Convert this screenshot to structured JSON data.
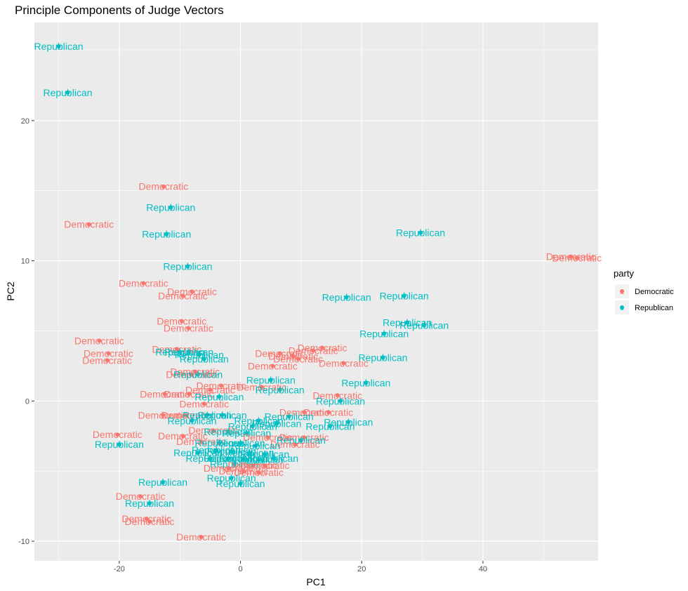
{
  "colors": {
    "Democratic": "#F8766D",
    "Republican": "#00BFC4",
    "panel": "#EBEBEB",
    "grid": "#FFFFFF"
  },
  "chart_data": {
    "type": "scatter",
    "title": "Principle Components of Judge Vectors",
    "xlabel": "PC1",
    "ylabel": "PC2",
    "xlim": [
      -34,
      59
    ],
    "ylim": [
      -11.4,
      27.0
    ],
    "x_ticks": [
      -20,
      0,
      20,
      40
    ],
    "y_ticks": [
      -10,
      0,
      10,
      20
    ],
    "grid": true,
    "legend": {
      "title": "party",
      "position": "right",
      "entries": [
        "Democratic",
        "Republican"
      ]
    },
    "points": [
      {
        "x": -30,
        "y": 25.3,
        "party": "Republican",
        "label": "Republican"
      },
      {
        "x": -28.5,
        "y": 22.0,
        "party": "Republican",
        "label": "Republican"
      },
      {
        "x": -12.7,
        "y": 15.3,
        "party": "Democratic",
        "label": "Democratic"
      },
      {
        "x": -11.5,
        "y": 13.8,
        "party": "Republican",
        "label": "Republican"
      },
      {
        "x": -25.0,
        "y": 12.6,
        "party": "Democratic",
        "label": "Democratic"
      },
      {
        "x": -12.2,
        "y": 11.9,
        "party": "Republican",
        "label": "Republican"
      },
      {
        "x": 29.7,
        "y": 12.0,
        "party": "Republican",
        "label": "Republican"
      },
      {
        "x": -8.7,
        "y": 9.6,
        "party": "Republican",
        "label": "Republican"
      },
      {
        "x": 54.5,
        "y": 10.3,
        "party": "Democratic",
        "label": "Democratic"
      },
      {
        "x": 55.5,
        "y": 10.2,
        "party": "Democratic",
        "label": "Democratic"
      },
      {
        "x": -16.0,
        "y": 8.4,
        "party": "Democratic",
        "label": "Democratic"
      },
      {
        "x": -8.0,
        "y": 7.8,
        "party": "Democratic",
        "label": "Democratic"
      },
      {
        "x": -9.5,
        "y": 7.5,
        "party": "Democratic",
        "label": "Democratic"
      },
      {
        "x": 17.5,
        "y": 7.4,
        "party": "Republican",
        "label": "Republican"
      },
      {
        "x": 27.0,
        "y": 7.5,
        "party": "Republican",
        "label": "Republican"
      },
      {
        "x": -9.7,
        "y": 5.7,
        "party": "Democratic",
        "label": "Democratic"
      },
      {
        "x": -8.6,
        "y": 5.2,
        "party": "Democratic",
        "label": "Democratic"
      },
      {
        "x": 27.5,
        "y": 5.6,
        "party": "Republican",
        "label": "Republican"
      },
      {
        "x": 30.3,
        "y": 5.4,
        "party": "Republican",
        "label": "Republican"
      },
      {
        "x": 23.7,
        "y": 4.8,
        "party": "Republican",
        "label": "Republican"
      },
      {
        "x": -23.3,
        "y": 4.3,
        "party": "Democratic",
        "label": "Democratic"
      },
      {
        "x": -10.5,
        "y": 3.7,
        "party": "Democratic",
        "label": "Democratic"
      },
      {
        "x": -10.0,
        "y": 3.5,
        "party": "Republican",
        "label": "Republican"
      },
      {
        "x": -8.5,
        "y": 3.5,
        "party": "Republican",
        "label": "Republican"
      },
      {
        "x": -6.8,
        "y": 3.3,
        "party": "Republican",
        "label": "Republican"
      },
      {
        "x": -21.8,
        "y": 3.4,
        "party": "Democratic",
        "label": "Democratic"
      },
      {
        "x": -22.0,
        "y": 2.9,
        "party": "Democratic",
        "label": "Democratic"
      },
      {
        "x": -6.0,
        "y": 3.0,
        "party": "Republican",
        "label": "Republican"
      },
      {
        "x": 6.5,
        "y": 3.4,
        "party": "Democratic",
        "label": "Democratic"
      },
      {
        "x": 8.7,
        "y": 3.2,
        "party": "Democratic",
        "label": "Democratic"
      },
      {
        "x": 9.5,
        "y": 3.0,
        "party": "Democratic",
        "label": "Democratic"
      },
      {
        "x": 13.5,
        "y": 3.8,
        "party": "Democratic",
        "label": "Democratic"
      },
      {
        "x": 12.0,
        "y": 3.6,
        "party": "Democratic",
        "label": "Democratic"
      },
      {
        "x": 5.3,
        "y": 2.5,
        "party": "Democratic",
        "label": "Democratic"
      },
      {
        "x": 17.0,
        "y": 2.7,
        "party": "Democratic",
        "label": "Democratic"
      },
      {
        "x": 23.5,
        "y": 3.1,
        "party": "Republican",
        "label": "Republican"
      },
      {
        "x": -7.5,
        "y": 2.1,
        "party": "Democratic",
        "label": "Democratic"
      },
      {
        "x": -8.2,
        "y": 1.9,
        "party": "Democratic",
        "label": "Democratic"
      },
      {
        "x": -7.0,
        "y": 1.9,
        "party": "Republican",
        "label": "Republican"
      },
      {
        "x": 5.0,
        "y": 1.5,
        "party": "Republican",
        "label": "Republican"
      },
      {
        "x": 20.7,
        "y": 1.3,
        "party": "Republican",
        "label": "Republican"
      },
      {
        "x": -3.2,
        "y": 1.1,
        "party": "Democratic",
        "label": "Democratic"
      },
      {
        "x": -5.0,
        "y": 0.8,
        "party": "Democratic",
        "label": "Democratic"
      },
      {
        "x": 3.5,
        "y": 1.0,
        "party": "Democratic",
        "label": "Democratic"
      },
      {
        "x": 6.5,
        "y": 0.8,
        "party": "Republican",
        "label": "Republican"
      },
      {
        "x": -12.5,
        "y": 0.5,
        "party": "Democratic",
        "label": "Democratic"
      },
      {
        "x": -8.5,
        "y": 0.5,
        "party": "Democratic",
        "label": "Democratic"
      },
      {
        "x": -3.5,
        "y": 0.3,
        "party": "Republican",
        "label": "Republican"
      },
      {
        "x": 16.0,
        "y": 0.4,
        "party": "Democratic",
        "label": "Democratic"
      },
      {
        "x": 16.5,
        "y": 0.0,
        "party": "Republican",
        "label": "Republican"
      },
      {
        "x": -6.0,
        "y": -0.2,
        "party": "Democratic",
        "label": "Democratic"
      },
      {
        "x": -12.8,
        "y": -1.0,
        "party": "Democratic",
        "label": "Democratic"
      },
      {
        "x": -9.0,
        "y": -1.0,
        "party": "Democratic",
        "label": "Democratic"
      },
      {
        "x": -5.5,
        "y": -1.0,
        "party": "Republican",
        "label": "Republican"
      },
      {
        "x": -3.0,
        "y": -1.0,
        "party": "Republican",
        "label": "Republican"
      },
      {
        "x": 10.5,
        "y": -0.8,
        "party": "Democratic",
        "label": "Democratic"
      },
      {
        "x": 14.5,
        "y": -0.8,
        "party": "Democratic",
        "label": "Democratic"
      },
      {
        "x": 8.0,
        "y": -1.1,
        "party": "Republican",
        "label": "Republican"
      },
      {
        "x": -8.0,
        "y": -1.4,
        "party": "Republican",
        "label": "Republican"
      },
      {
        "x": 3.0,
        "y": -1.4,
        "party": "Republican",
        "label": "Republican"
      },
      {
        "x": 6.0,
        "y": -1.6,
        "party": "Republican",
        "label": "Republican"
      },
      {
        "x": 2.0,
        "y": -1.8,
        "party": "Republican",
        "label": "Republican"
      },
      {
        "x": 17.8,
        "y": -1.5,
        "party": "Republican",
        "label": "Republican"
      },
      {
        "x": 14.8,
        "y": -1.8,
        "party": "Republican",
        "label": "Republican"
      },
      {
        "x": -20.3,
        "y": -2.4,
        "party": "Democratic",
        "label": "Democratic"
      },
      {
        "x": -20.0,
        "y": -3.1,
        "party": "Republican",
        "label": "Republican"
      },
      {
        "x": -9.5,
        "y": -2.5,
        "party": "Democratic",
        "label": "Democratic"
      },
      {
        "x": -4.5,
        "y": -2.1,
        "party": "Democratic",
        "label": "Democratic"
      },
      {
        "x": -2.0,
        "y": -2.2,
        "party": "Republican",
        "label": "Republican"
      },
      {
        "x": 1.0,
        "y": -2.3,
        "party": "Republican",
        "label": "Republican"
      },
      {
        "x": 4.5,
        "y": -2.6,
        "party": "Democratic",
        "label": "Democratic"
      },
      {
        "x": 10.5,
        "y": -2.6,
        "party": "Democratic",
        "label": "Democratic"
      },
      {
        "x": 10.0,
        "y": -2.8,
        "party": "Republican",
        "label": "Republican"
      },
      {
        "x": 9.0,
        "y": -3.1,
        "party": "Democratic",
        "label": "Democratic"
      },
      {
        "x": -6.5,
        "y": -2.9,
        "party": "Democratic",
        "label": "Democratic"
      },
      {
        "x": -3.5,
        "y": -3.0,
        "party": "Republican",
        "label": "Republican"
      },
      {
        "x": 0.0,
        "y": -3.0,
        "party": "Republican",
        "label": "Republican"
      },
      {
        "x": 2.5,
        "y": -3.2,
        "party": "Republican",
        "label": "Republican"
      },
      {
        "x": -4.0,
        "y": -3.5,
        "party": "Republican",
        "label": "Republican"
      },
      {
        "x": -1.5,
        "y": -3.6,
        "party": "Republican",
        "label": "Republican"
      },
      {
        "x": 1.5,
        "y": -3.7,
        "party": "Republican",
        "label": "Republican"
      },
      {
        "x": 4.0,
        "y": -3.8,
        "party": "Republican",
        "label": "Republican"
      },
      {
        "x": -7.0,
        "y": -3.7,
        "party": "Republican",
        "label": "Republican"
      },
      {
        "x": -5.0,
        "y": -4.1,
        "party": "Republican",
        "label": "Republican"
      },
      {
        "x": -2.0,
        "y": -4.1,
        "party": "Republican",
        "label": "Republican"
      },
      {
        "x": 0.5,
        "y": -4.1,
        "party": "Republican",
        "label": "Republican"
      },
      {
        "x": 3.0,
        "y": -4.2,
        "party": "Republican",
        "label": "Republican"
      },
      {
        "x": 5.5,
        "y": -4.1,
        "party": "Republican",
        "label": "Republican"
      },
      {
        "x": -1.0,
        "y": -4.5,
        "party": "Republican",
        "label": "Republican"
      },
      {
        "x": 2.0,
        "y": -4.6,
        "party": "Democratic",
        "label": "Democratic"
      },
      {
        "x": 4.0,
        "y": -4.6,
        "party": "Democratic",
        "label": "Democratic"
      },
      {
        "x": -2.0,
        "y": -4.8,
        "party": "Democratic",
        "label": "Democratic"
      },
      {
        "x": 0.5,
        "y": -5.0,
        "party": "Democratic",
        "label": "Democratic"
      },
      {
        "x": 3.0,
        "y": -5.1,
        "party": "Democratic",
        "label": "Democratic"
      },
      {
        "x": -1.5,
        "y": -5.5,
        "party": "Republican",
        "label": "Republican"
      },
      {
        "x": 0.0,
        "y": -5.9,
        "party": "Republican",
        "label": "Republican"
      },
      {
        "x": -12.8,
        "y": -5.8,
        "party": "Republican",
        "label": "Republican"
      },
      {
        "x": -16.5,
        "y": -6.8,
        "party": "Democratic",
        "label": "Democratic"
      },
      {
        "x": -15.0,
        "y": -7.3,
        "party": "Republican",
        "label": "Republican"
      },
      {
        "x": -15.5,
        "y": -8.4,
        "party": "Democratic",
        "label": "Democratic"
      },
      {
        "x": -15.0,
        "y": -8.6,
        "party": "Democratic",
        "label": "Democratic"
      },
      {
        "x": -6.5,
        "y": -9.7,
        "party": "Democratic",
        "label": "Democratic"
      }
    ]
  }
}
